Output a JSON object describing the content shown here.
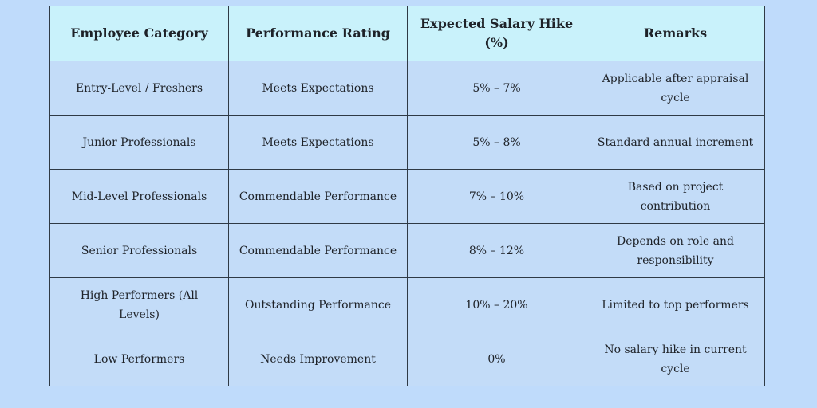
{
  "table": {
    "header": [
      "Employee Category",
      "Performance Rating",
      "Expected Salary Hike (%)",
      "Remarks"
    ],
    "rows": [
      [
        "Entry-Level / Freshers",
        "Meets Expectations",
        "5% – 7%",
        "Applicable after appraisal cycle"
      ],
      [
        "Junior Professionals",
        "Meets Expectations",
        "5% – 8%",
        "Standard annual increment"
      ],
      [
        "Mid-Level Professionals",
        "Commendable Performance",
        "7% – 10%",
        "Based on project contribution"
      ],
      [
        "Senior Professionals",
        "Commendable Performance",
        "8% – 12%",
        "Depends on role and responsibility"
      ],
      [
        "High Performers (All Levels)",
        "Outstanding Performance",
        "10% – 20%",
        "Limited to top performers"
      ],
      [
        "Low Performers",
        "Needs Improvement",
        "0%",
        "No salary hike in current cycle"
      ]
    ]
  }
}
